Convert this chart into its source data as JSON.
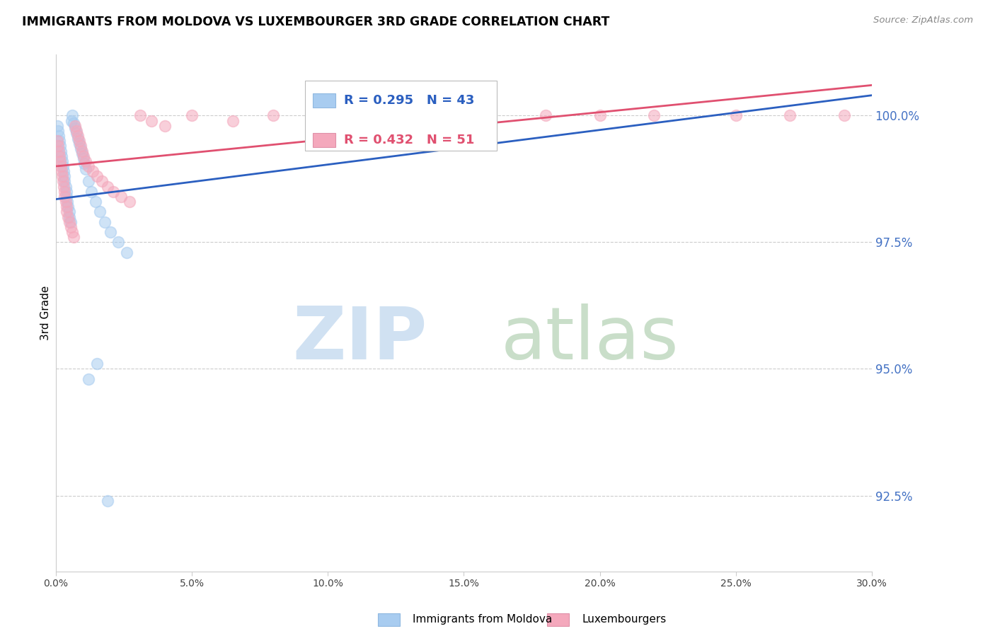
{
  "title": "IMMIGRANTS FROM MOLDOVA VS LUXEMBOURGER 3RD GRADE CORRELATION CHART",
  "source": "Source: ZipAtlas.com",
  "ylabel": "3rd Grade",
  "y_ticks": [
    92.5,
    95.0,
    97.5,
    100.0
  ],
  "x_min": 0.0,
  "x_max": 30.0,
  "y_min": 91.0,
  "y_max": 101.2,
  "blue_label": "Immigrants from Moldova",
  "pink_label": "Luxembourgers",
  "blue_R": 0.295,
  "blue_N": 43,
  "pink_R": 0.432,
  "pink_N": 51,
  "blue_color": "#A8CCF0",
  "pink_color": "#F4A8BC",
  "blue_line_color": "#2B5FC0",
  "pink_line_color": "#E05070",
  "blue_x": [
    0.05,
    0.08,
    0.1,
    0.12,
    0.15,
    0.18,
    0.2,
    0.22,
    0.25,
    0.28,
    0.3,
    0.32,
    0.35,
    0.38,
    0.4,
    0.42,
    0.45,
    0.48,
    0.5,
    0.55,
    0.58,
    0.6,
    0.65,
    0.7,
    0.75,
    0.8,
    0.85,
    0.9,
    0.95,
    1.0,
    1.05,
    1.1,
    1.2,
    1.3,
    1.45,
    1.6,
    1.8,
    2.0,
    2.3,
    2.6,
    1.2,
    1.5,
    1.9
  ],
  "blue_y": [
    99.8,
    99.7,
    99.6,
    99.5,
    99.4,
    99.3,
    99.2,
    99.1,
    99.0,
    98.9,
    98.8,
    98.7,
    98.6,
    98.5,
    98.4,
    98.3,
    98.2,
    98.1,
    98.0,
    97.9,
    99.9,
    100.0,
    99.85,
    99.75,
    99.65,
    99.55,
    99.45,
    99.35,
    99.25,
    99.15,
    99.05,
    98.95,
    98.7,
    98.5,
    98.3,
    98.1,
    97.9,
    97.7,
    97.5,
    97.3,
    94.8,
    95.1,
    92.4
  ],
  "pink_x": [
    0.05,
    0.08,
    0.1,
    0.12,
    0.15,
    0.18,
    0.2,
    0.22,
    0.25,
    0.28,
    0.3,
    0.32,
    0.35,
    0.38,
    0.4,
    0.45,
    0.5,
    0.55,
    0.6,
    0.65,
    0.7,
    0.75,
    0.8,
    0.85,
    0.9,
    0.95,
    1.0,
    1.1,
    1.2,
    1.35,
    1.5,
    1.7,
    1.9,
    2.1,
    2.4,
    2.7,
    3.1,
    3.5,
    4.0,
    5.0,
    6.5,
    8.0,
    10.0,
    12.0,
    15.0,
    18.0,
    20.0,
    22.0,
    25.0,
    27.0,
    29.0
  ],
  "pink_y": [
    99.5,
    99.4,
    99.3,
    99.2,
    99.1,
    99.0,
    98.9,
    98.8,
    98.7,
    98.6,
    98.5,
    98.4,
    98.3,
    98.2,
    98.1,
    98.0,
    97.9,
    97.8,
    97.7,
    97.6,
    99.8,
    99.7,
    99.6,
    99.5,
    99.4,
    99.3,
    99.2,
    99.1,
    99.0,
    98.9,
    98.8,
    98.7,
    98.6,
    98.5,
    98.4,
    98.3,
    100.0,
    99.9,
    99.8,
    100.0,
    99.9,
    100.0,
    100.0,
    100.0,
    100.0,
    100.0,
    100.0,
    100.0,
    100.0,
    100.0,
    100.0
  ],
  "blue_line_x0": 0.0,
  "blue_line_y0": 98.35,
  "blue_line_x1": 30.0,
  "blue_line_y1": 100.4,
  "pink_line_x0": 0.0,
  "pink_line_y0": 99.0,
  "pink_line_x1": 30.0,
  "pink_line_y1": 100.6
}
